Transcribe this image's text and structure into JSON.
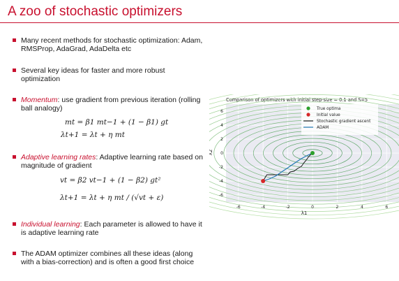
{
  "slide": {
    "title": "A zoo of stochastic optimizers"
  },
  "bullets": [
    {
      "lead": "",
      "text": "Many recent methods for stochastic optimization: Adam, RMSProp, AdaGrad, AdaDelta etc"
    },
    {
      "lead": "",
      "text": "Several key ideas for faster and more robust optimization"
    },
    {
      "lead": "Momentum",
      "text": ": use gradient from previous iteration (rolling ball analogy)"
    },
    {
      "lead": "Adaptive learning rates",
      "text": ": Adaptive learning rate based on magnitude of gradient"
    },
    {
      "lead": "Individual learning",
      "text": ": Each parameter is allowed to have it is adaptive learning rate"
    },
    {
      "lead": "",
      "text": "The ADAM optimizer combines all these ideas (along with a bias-correction) and is often a good first choice"
    }
  ],
  "equations": {
    "momentum_update": "mt = β1 mt−1 + (1 − β1) gt",
    "momentum_step": "λt+1 = λt + η mt",
    "adaptive_update": "vt = β2 vt−1 + (1 − β2) gt²",
    "adaptive_step": "λt+1 = λt + η mt / (√vt + ε)"
  },
  "chart_data": {
    "type": "line",
    "title": "Comparison of optimizers with initial step-size = 0.1 and S=5",
    "xlabel": "λ1",
    "ylabel": "λ2",
    "xlim": [
      -7,
      7
    ],
    "ylim": [
      -7,
      7
    ],
    "xticks": [
      -6,
      -4,
      -2,
      0,
      2,
      4,
      6
    ],
    "yticks": [
      -6,
      -4,
      -2,
      0,
      2,
      4,
      6
    ],
    "grid": true,
    "legend_position": "top-right",
    "points": [
      {
        "name": "True optima",
        "x": 0,
        "y": 0,
        "color": "#2ca02c"
      },
      {
        "name": "Initial value",
        "x": -4,
        "y": -4,
        "color": "#d62728"
      }
    ],
    "series": [
      {
        "name": "Stochastic gradient ascent",
        "color": "#1a1a1a",
        "x": [
          -4,
          -3.7,
          -3.3,
          -2.6,
          -2.0,
          -1.8,
          -1.5,
          -1.2,
          -0.9,
          -0.7,
          -0.5,
          -0.35,
          -0.2,
          0
        ],
        "y": [
          -4,
          -3.1,
          -3.1,
          -3.1,
          -3.1,
          -2.7,
          -2.6,
          -2.2,
          -1.9,
          -1.4,
          -1.0,
          -0.6,
          -0.3,
          0
        ]
      },
      {
        "name": "ADAM",
        "color": "#1f77b4",
        "x": [
          -4,
          -3.5,
          -3.0,
          -2.5,
          -2.0,
          -1.5,
          -1.0,
          -0.6,
          -0.2,
          0
        ],
        "y": [
          -4,
          -3.7,
          -3.3,
          -2.7,
          -2.1,
          -1.5,
          -0.9,
          -0.5,
          -0.15,
          0
        ]
      }
    ]
  }
}
